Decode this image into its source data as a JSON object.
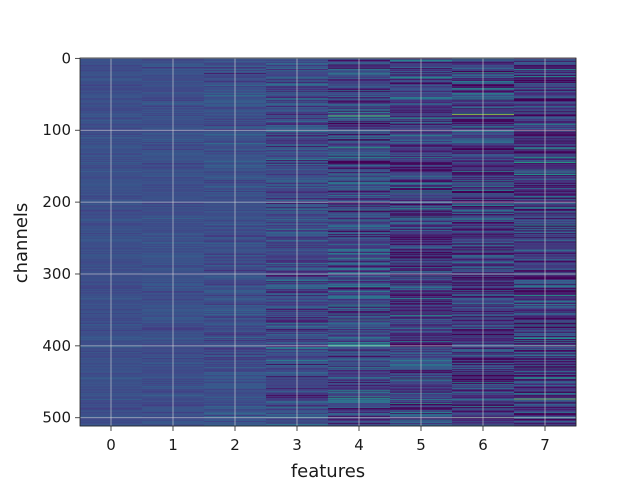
{
  "chart_data": {
    "type": "heatmap",
    "title": "",
    "xlabel": "features",
    "ylabel": "channels",
    "x_ticks": [
      "0",
      "1",
      "2",
      "3",
      "4",
      "5",
      "6",
      "7"
    ],
    "y_ticks": [
      0,
      100,
      200,
      300,
      400,
      500
    ],
    "y_tick_labels": [
      "0",
      "100",
      "200",
      "300",
      "400",
      "500"
    ],
    "xlim": [
      -0.5,
      7.5
    ],
    "ylim": [
      511.5,
      -0.5
    ],
    "rows": 512,
    "columns": 8,
    "grid": true,
    "colormap": "viridis",
    "column_profiles": [
      {
        "feature": 0,
        "mean": 0.24,
        "spread": 0.025
      },
      {
        "feature": 1,
        "mean": 0.24,
        "spread": 0.03
      },
      {
        "feature": 2,
        "mean": 0.24,
        "spread": 0.05
      },
      {
        "feature": 3,
        "mean": 0.22,
        "spread": 0.09
      },
      {
        "feature": 4,
        "mean": 0.22,
        "spread": 0.13
      },
      {
        "feature": 5,
        "mean": 0.17,
        "spread": 0.13
      },
      {
        "feature": 6,
        "mean": 0.17,
        "spread": 0.15
      },
      {
        "feature": 7,
        "mean": 0.17,
        "spread": 0.15
      }
    ],
    "notable_high_values": [
      {
        "feature": 4,
        "channel": 80,
        "value": 0.75
      },
      {
        "feature": 4,
        "channel": 400,
        "value": 0.6
      },
      {
        "feature": 6,
        "channel": 78,
        "value": 0.85
      },
      {
        "feature": 7,
        "channel": 145,
        "value": 0.6
      },
      {
        "feature": 7,
        "channel": 474,
        "value": 0.8
      },
      {
        "feature": 5,
        "channel": 358,
        "value": 0.55
      }
    ]
  }
}
